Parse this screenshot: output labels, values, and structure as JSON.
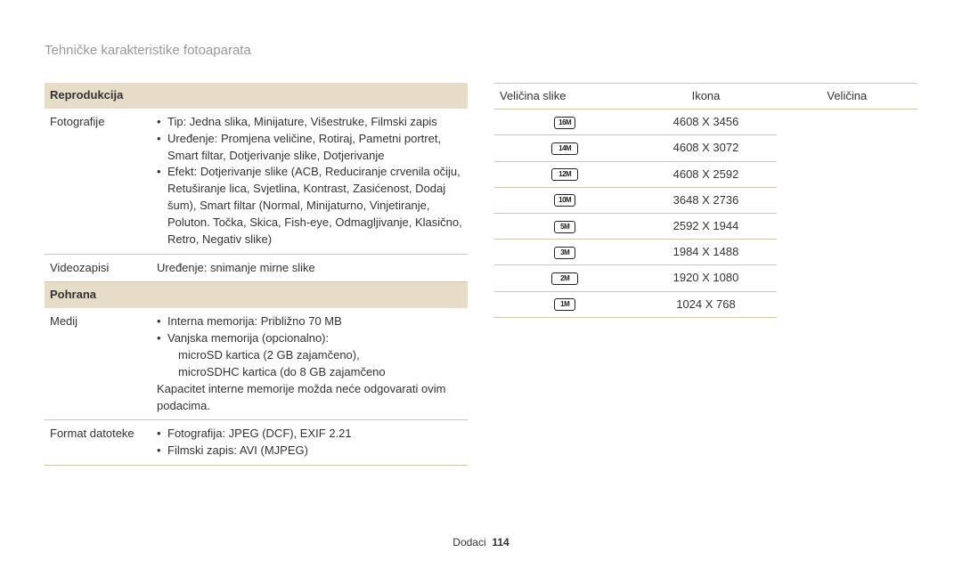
{
  "page": {
    "title": "Tehničke karakteristike fotoaparata",
    "footer_section": "Dodaci",
    "footer_page": "114"
  },
  "left": {
    "section1": "Reprodukcija",
    "row_photos_label": "Fotografije",
    "row_photos_li1": "Tip: Jedna slika, Minijature, Višestruke, Filmski zapis",
    "row_photos_li2": "Uređenje: Promjena veličine, Rotiraj, Pametni portret, Smart filtar, Dotjerivanje slike, Dotjerivanje",
    "row_photos_li3": "Efekt: Dotjerivanje slike (ACB, Reduciranje crvenila očiju, Retuširanje lica, Svjetlina, Kontrast, Zasićenost, Dodaj šum), Smart filtar (Normal, Minijaturno, Vinjetiranje, Poluton. Točka, Skica, Fish-eye, Odmagljivanje, Klasično, Retro, Negativ slike)",
    "row_video_label": "Videozapisi",
    "row_video_val": "Uređenje: snimanje mirne slike",
    "section2": "Pohrana",
    "row_media_label": "Medij",
    "row_media_li1": "Interna memorija: Približno 70 MB",
    "row_media_li2": "Vanjska memorija (opcionalno):",
    "row_media_li2a": "microSD kartica (2 GB zajamčeno),",
    "row_media_li2b": "microSDHC kartica (do 8 GB zajamčeno",
    "row_media_note": "Kapacitet interne memorije možda neće odgovarati ovim podacima.",
    "row_format_label": "Format datoteke",
    "row_format_li1": "Fotografija: JPEG (DCF), EXIF 2.21",
    "row_format_li2": "Filmski zapis: AVI (MJPEG)"
  },
  "right": {
    "side_label": "Veličina slike",
    "hdr_icon": "Ikona",
    "hdr_size": "Veličina",
    "rows": [
      {
        "icon": "16M",
        "wide": false,
        "size": "4608 X 3456"
      },
      {
        "icon": "14M",
        "wide": true,
        "size": "4608 X 3072"
      },
      {
        "icon": "12M",
        "wide": true,
        "size": "4608 X 2592"
      },
      {
        "icon": "10M",
        "wide": false,
        "size": "3648 X 2736"
      },
      {
        "icon": "5M",
        "wide": false,
        "size": "2592 X 1944"
      },
      {
        "icon": "3M",
        "wide": false,
        "size": "1984 X 1488"
      },
      {
        "icon": "2M",
        "wide": true,
        "size": "1920 X 1080"
      },
      {
        "icon": "1M",
        "wide": false,
        "size": "1024 X 768"
      }
    ]
  }
}
